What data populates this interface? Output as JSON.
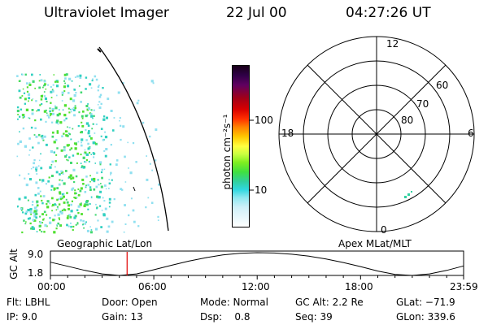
{
  "header": {
    "instrument": "Ultraviolet Imager",
    "date": "22 Jul 00",
    "time": "04:27:26 UT"
  },
  "colorbar": {
    "unit_label": "photon cm⁻²s⁻¹",
    "ticks": [
      "100",
      "10"
    ]
  },
  "polar_plot": {
    "mlt_labels": {
      "top": "12",
      "left": "18",
      "right": "6",
      "bottom": "0"
    },
    "mlat_labels": [
      "60",
      "70",
      "80"
    ]
  },
  "timeline": {
    "left_label": "Geographic Lat/Lon",
    "right_label": "Apex MLat/MLT",
    "y_axis_label": "GC Alt",
    "y_ticks": [
      "9.0",
      "1.8"
    ],
    "x_ticks": [
      "00:00",
      "06:00",
      "12:00",
      "18:00",
      "23:59"
    ]
  },
  "info": {
    "row1": [
      "Flt: LBHL",
      "Door: Open",
      "Mode: Normal",
      "GC Alt: 2.2 Re",
      "GLat: −71.9"
    ],
    "row2": [
      "IP: 9.0",
      "Gain: 13",
      "Dsp:    0.8",
      "Seq: 39",
      "GLon: 339.6"
    ]
  },
  "chart_data": {
    "type": "line",
    "title": "",
    "xlabel": "",
    "ylabel": "GC Alt",
    "x_unit": "UT hour",
    "ylim": [
      1.8,
      9.0
    ],
    "x": [
      0,
      1,
      2,
      3,
      4,
      5,
      6,
      7,
      8,
      9,
      10,
      11,
      12,
      13,
      14,
      15,
      16,
      17,
      18,
      19,
      20,
      21,
      22,
      23,
      23.98
    ],
    "series": [
      {
        "values": [
          6.0,
          4.7,
          3.4,
          2.3,
          1.8,
          2.3,
          3.6,
          5.0,
          6.3,
          7.4,
          8.3,
          8.8,
          9.0,
          8.9,
          8.5,
          7.9,
          7.0,
          5.9,
          4.6,
          3.2,
          2.1,
          1.8,
          2.3,
          3.4,
          4.8
        ]
      }
    ],
    "current_time_marker": 4.45,
    "colors": {
      "line": "#000000",
      "marker": "#e00000"
    }
  }
}
